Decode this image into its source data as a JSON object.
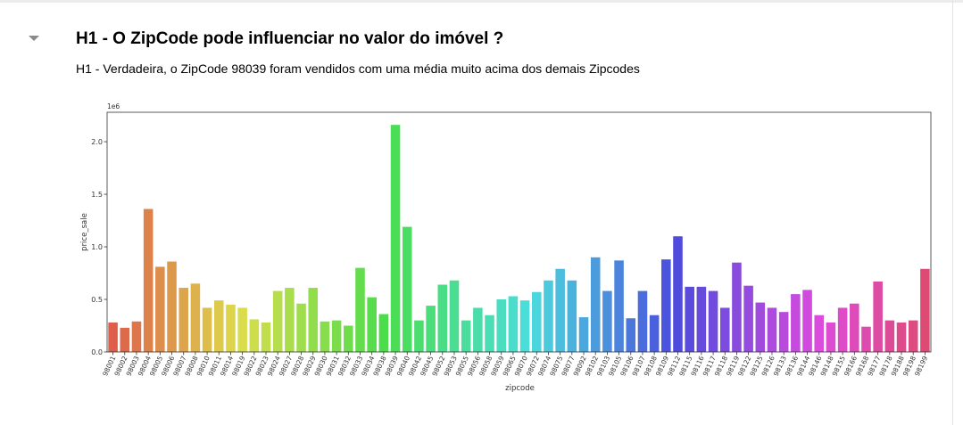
{
  "notebook": {
    "heading": "H1 - O ZipCode pode influenciar no valor do imóvel ?",
    "description": "H1 - Verdadeira, o ZipCode 98039 foram vendidos com uma média muito acima dos demais Zipcodes"
  },
  "chart_data": {
    "type": "bar",
    "xlabel": "zipcode",
    "ylabel": "price_sale",
    "offset_label": "1e6",
    "ylim": [
      0,
      2.28
    ],
    "yticks": [
      0.0,
      0.5,
      1.0,
      1.5,
      2.0
    ],
    "ytick_labels": [
      "0.0",
      "0.5",
      "1.0",
      "1.5",
      "2.0"
    ],
    "grid": false,
    "legend": "none",
    "categories": [
      "98001",
      "98002",
      "98003",
      "98004",
      "98005",
      "98006",
      "98007",
      "98008",
      "98010",
      "98011",
      "98014",
      "98019",
      "98022",
      "98023",
      "98024",
      "98027",
      "98028",
      "98029",
      "98030",
      "98031",
      "98032",
      "98033",
      "98034",
      "98038",
      "98039",
      "98040",
      "98042",
      "98045",
      "98052",
      "98053",
      "98055",
      "98056",
      "98058",
      "98059",
      "98065",
      "98070",
      "98072",
      "98074",
      "98075",
      "98077",
      "98092",
      "98102",
      "98103",
      "98105",
      "98106",
      "98107",
      "98108",
      "98109",
      "98112",
      "98115",
      "98116",
      "98117",
      "98118",
      "98119",
      "98122",
      "98125",
      "98126",
      "98133",
      "98136",
      "98144",
      "98146",
      "98148",
      "98155",
      "98166",
      "98168",
      "98177",
      "98178",
      "98188",
      "98198",
      "98199"
    ],
    "values": [
      0.28,
      0.23,
      0.29,
      1.36,
      0.81,
      0.86,
      0.61,
      0.65,
      0.42,
      0.49,
      0.45,
      0.42,
      0.31,
      0.28,
      0.58,
      0.61,
      0.46,
      0.61,
      0.29,
      0.3,
      0.25,
      0.8,
      0.52,
      0.36,
      2.16,
      1.19,
      0.3,
      0.44,
      0.64,
      0.68,
      0.3,
      0.42,
      0.35,
      0.5,
      0.53,
      0.49,
      0.57,
      0.68,
      0.79,
      0.68,
      0.33,
      0.9,
      0.58,
      0.87,
      0.32,
      0.58,
      0.35,
      0.88,
      1.1,
      0.62,
      0.62,
      0.58,
      0.42,
      0.85,
      0.63,
      0.47,
      0.42,
      0.38,
      0.55,
      0.59,
      0.35,
      0.28,
      0.42,
      0.46,
      0.24,
      0.67,
      0.3,
      0.28,
      0.3,
      0.79
    ]
  }
}
